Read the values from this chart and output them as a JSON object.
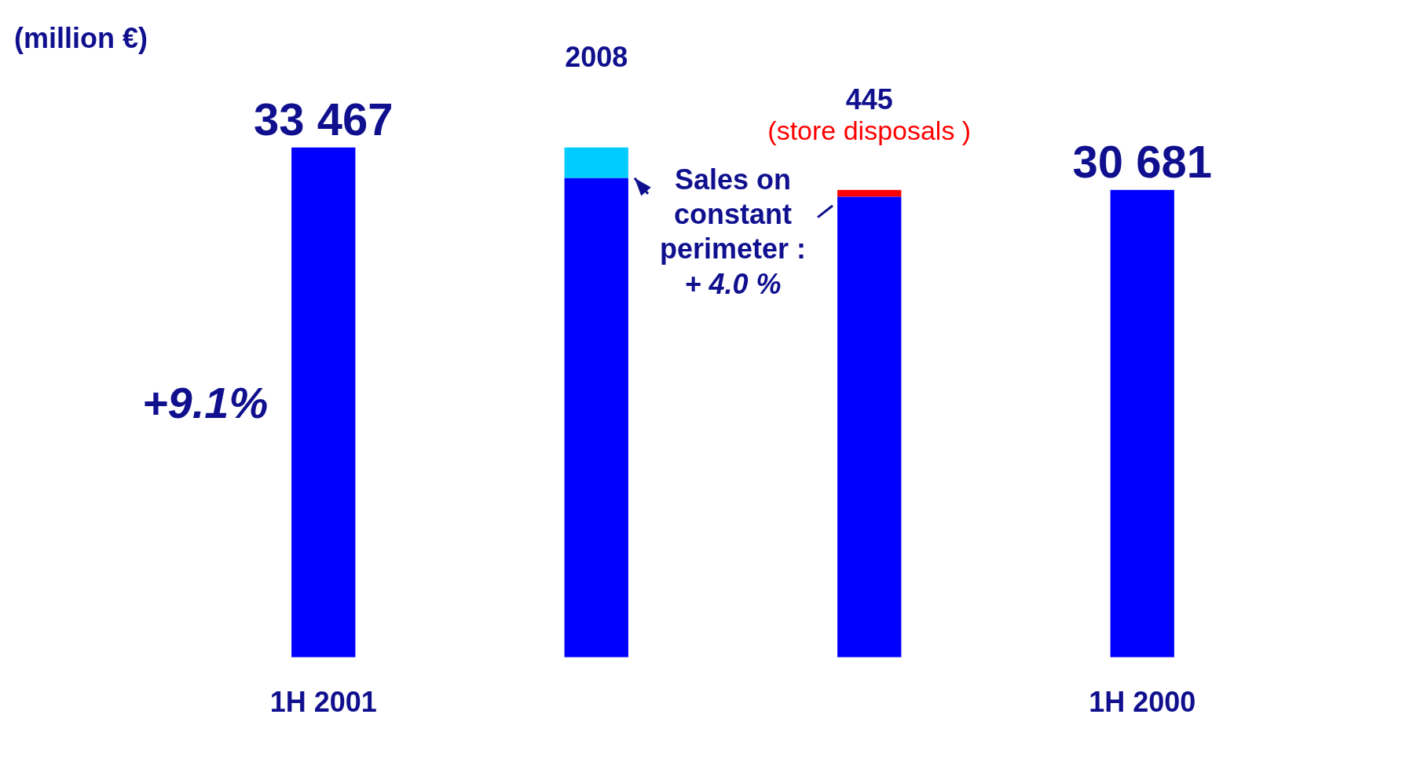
{
  "chart_data": {
    "type": "bar",
    "categories": [
      "1H 2001",
      null,
      null,
      "1H 2000"
    ],
    "stacked": true,
    "tick_labels": "x",
    "series": [
      {
        "color": "#0000ff",
        "values": [
          33467,
          31459,
          30236,
          30681
        ],
        "value_labels": [
          "33 467",
          null,
          null,
          "30 681"
        ]
      },
      {
        "color": "#00ccff",
        "values": [
          null,
          2008,
          null,
          null
        ],
        "value_labels": [
          null,
          "2008",
          null,
          null
        ]
      },
      {
        "color": "#ff0000",
        "values": [
          null,
          null,
          445,
          null
        ],
        "value_labels": [
          null,
          null,
          "445",
          null
        ]
      }
    ],
    "annotations": [
      "(million €)",
      "+9.1%",
      "(store disposals )",
      "Sales on constant perimeter  :",
      "+ 4.0 %"
    ]
  }
}
